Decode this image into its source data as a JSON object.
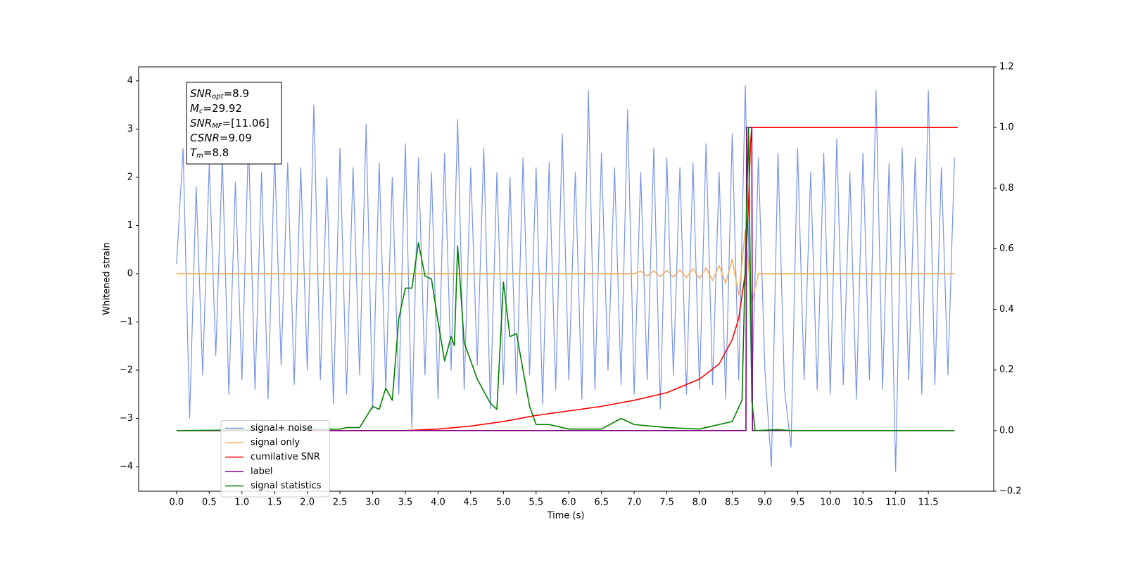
{
  "chart_data": {
    "type": "line",
    "xlabel": "Time (s)",
    "ylabel": "Whitened strain",
    "xlim": [
      -0.58,
      12.5
    ],
    "ylim": [
      -4.51,
      4.29
    ],
    "y2lim": [
      -0.2,
      1.2
    ],
    "xticks": [
      {
        "value": 0,
        "label": "0.0"
      },
      {
        "value": 0.5,
        "label": "0.5"
      },
      {
        "value": 1,
        "label": "1.0"
      },
      {
        "value": 1.5,
        "label": "1.5"
      },
      {
        "value": 2,
        "label": "2.0"
      },
      {
        "value": 2.5,
        "label": "2.5"
      },
      {
        "value": 3,
        "label": "3.0"
      },
      {
        "value": 3.5,
        "label": "3.5"
      },
      {
        "value": 4,
        "label": "4.0"
      },
      {
        "value": 4.5,
        "label": "4.5"
      },
      {
        "value": 5,
        "label": "5.0"
      },
      {
        "value": 5.5,
        "label": "5.5"
      },
      {
        "value": 6,
        "label": "6.0"
      },
      {
        "value": 6.5,
        "label": "6.5"
      },
      {
        "value": 7,
        "label": "7.0"
      },
      {
        "value": 7.5,
        "label": "7.5"
      },
      {
        "value": 8,
        "label": "8.0"
      },
      {
        "value": 8.5,
        "label": "8.5"
      },
      {
        "value": 9,
        "label": "9.0"
      },
      {
        "value": 9.5,
        "label": "9.5"
      },
      {
        "value": 10,
        "label": "10.0"
      },
      {
        "value": 10.5,
        "label": "10.5"
      },
      {
        "value": 11,
        "label": "11.0"
      },
      {
        "value": 11.5,
        "label": "11.5"
      }
    ],
    "yticks": [
      {
        "value": -4,
        "label": "−4"
      },
      {
        "value": -3,
        "label": "−3"
      },
      {
        "value": -2,
        "label": "−2"
      },
      {
        "value": -1,
        "label": "−1"
      },
      0,
      1,
      2,
      3,
      4
    ],
    "y2ticks": [
      {
        "value": -0.2,
        "label": "−0.2"
      },
      {
        "value": 0,
        "label": "0.0"
      },
      0.2,
      0.4,
      0.6,
      0.8,
      {
        "value": 1,
        "label": "1.0"
      },
      1.2
    ],
    "legend": "lower left",
    "annotations": [
      {
        "base": "SNR",
        "sub": "opt",
        "text": "=8.9"
      },
      {
        "base": "M",
        "sub": "c",
        "text": "=29.92"
      },
      {
        "base": "SNR",
        "sub": "MF",
        "text": "=[11.06]"
      },
      {
        "base": "CSNR",
        "sub": null,
        "text": "=9.09"
      },
      {
        "base": "T",
        "sub": "m",
        "text": "=8.8"
      }
    ],
    "x": [
      0,
      0.1,
      0.2,
      0.3,
      0.4,
      0.5,
      0.6,
      0.7,
      0.8,
      0.9,
      1,
      1.1,
      1.2,
      1.3,
      1.4,
      1.5,
      1.6,
      1.7,
      1.8,
      1.9,
      2,
      2.1,
      2.2,
      2.3,
      2.4,
      2.5,
      2.6,
      2.7,
      2.8,
      2.9,
      3,
      3.1,
      3.2,
      3.3,
      3.4,
      3.5,
      3.6,
      3.7,
      3.8,
      3.9,
      4,
      4.1,
      4.2,
      4.3,
      4.4,
      4.5,
      4.6,
      4.7,
      4.8,
      4.9,
      5,
      5.1,
      5.2,
      5.3,
      5.4,
      5.5,
      5.6,
      5.7,
      5.8,
      5.9,
      6,
      6.1,
      6.2,
      6.3,
      6.4,
      6.5,
      6.6,
      6.7,
      6.8,
      6.9,
      7,
      7.1,
      7.2,
      7.3,
      7.4,
      7.5,
      7.6,
      7.7,
      7.8,
      7.9,
      8,
      8.1,
      8.2,
      8.3,
      8.4,
      8.5,
      8.6,
      8.7,
      8.8,
      8.9,
      9,
      9.1,
      9.2,
      9.3,
      9.4,
      9.5,
      9.6,
      9.7,
      9.8,
      9.9,
      10,
      10.1,
      10.2,
      10.3,
      10.4,
      10.5,
      10.6,
      10.7,
      10.8,
      10.9,
      11,
      11.1,
      11.2,
      11.3,
      11.4,
      11.5,
      11.6,
      11.7,
      11.8,
      11.9
    ],
    "series": [
      {
        "name": "signal+ noise",
        "color": "#7893e6",
        "values": [
          0.2,
          2.6,
          -3.0,
          1.8,
          -2.1,
          2.3,
          -1.7,
          2.4,
          -2.5,
          1.9,
          -2.2,
          2.8,
          -2.4,
          2.1,
          -2.6,
          2.5,
          -1.9,
          2.3,
          -2.3,
          2.2,
          -2.0,
          3.5,
          -2.2,
          2.0,
          -2.7,
          2.6,
          -2.5,
          2.2,
          -2.1,
          3.1,
          -2.8,
          2.3,
          -2.4,
          2.0,
          -2.5,
          2.7,
          -3.2,
          2.4,
          -2.1,
          2.1,
          -2.6,
          2.5,
          -2.0,
          3.2,
          -2.4,
          2.2,
          -1.9,
          2.6,
          -2.8,
          2.1,
          -2.3,
          2.0,
          -2.5,
          2.4,
          -2.1,
          2.2,
          -2.7,
          2.3,
          -2.4,
          2.9,
          -2.2,
          2.1,
          -2.6,
          3.8,
          -2.4,
          2.5,
          -2.0,
          2.2,
          -2.3,
          3.4,
          -2.5,
          2.1,
          -2.2,
          2.6,
          -2.8,
          2.4,
          -2.1,
          2.2,
          -2.5,
          2.3,
          -2.4,
          2.7,
          -2.3,
          2.1,
          -2.6,
          2.9,
          -2.2,
          3.9,
          -2.5,
          2.4,
          -2.0,
          -4.0,
          2.5,
          -2.4,
          -3.6,
          2.6,
          -2.2,
          2.1,
          -2.4,
          2.5,
          -2.5,
          2.8,
          -2.3,
          2.1,
          -2.6,
          2.5,
          -2.2,
          3.8,
          -2.4,
          2.3,
          -4.1,
          2.6,
          -2.2,
          2.4,
          -2.5,
          3.8,
          -2.3,
          2.2,
          -2.1,
          2.4
        ]
      },
      {
        "name": "signal only",
        "color": "#f0b060",
        "values": [
          0,
          0,
          0,
          0,
          0,
          0,
          0,
          0,
          0,
          0,
          0,
          0,
          0,
          0,
          0,
          0,
          0,
          0,
          0,
          0,
          0,
          0,
          0,
          0,
          0,
          0,
          0,
          0,
          0,
          0,
          0,
          0,
          0,
          0,
          0,
          0,
          0,
          0,
          0,
          0,
          0,
          0,
          0,
          0,
          0,
          0,
          0,
          0,
          0,
          0,
          0,
          0,
          0,
          0,
          0,
          0,
          0,
          0,
          0,
          0,
          0,
          0,
          0,
          0,
          0,
          0,
          0,
          0,
          0,
          0,
          0,
          0.05,
          -0.05,
          0.06,
          -0.06,
          0.07,
          -0.07,
          0.08,
          -0.08,
          0.1,
          -0.1,
          0.12,
          -0.14,
          0.17,
          -0.2,
          0.3,
          -0.45,
          0.9,
          -0.6,
          0,
          0,
          0,
          0,
          0,
          0,
          0,
          0,
          0,
          0,
          0,
          0,
          0,
          0,
          0,
          0,
          0,
          0,
          0,
          0,
          0,
          0,
          0,
          0,
          0,
          0,
          0,
          0,
          0,
          0,
          0
        ]
      },
      {
        "name": "cumilative SNR",
        "color": "#ff0000",
        "axis": "y2",
        "x": [
          0,
          3.5,
          4,
          4.5,
          5,
          5.5,
          6,
          6.5,
          7,
          7.5,
          8,
          8.3,
          8.5,
          8.6,
          8.7,
          8.75,
          8.78,
          8.8,
          11.95
        ],
        "values": [
          0,
          0,
          0.005,
          0.015,
          0.03,
          0.05,
          0.065,
          0.08,
          0.1,
          0.125,
          0.17,
          0.22,
          0.3,
          0.37,
          0.52,
          0.75,
          0.95,
          1,
          1
        ]
      },
      {
        "name": "label",
        "color": "#800080",
        "axis": "y2",
        "x": [
          0,
          8.71,
          8.72,
          8.8,
          8.81,
          11.9
        ],
        "values": [
          0,
          0,
          1,
          1,
          0,
          0
        ]
      },
      {
        "name": "signal statistics",
        "color": "#008000",
        "axis": "y2",
        "x": [
          0,
          2.5,
          2.6,
          2.8,
          3.0,
          3.1,
          3.2,
          3.3,
          3.4,
          3.5,
          3.6,
          3.7,
          3.8,
          3.9,
          4.0,
          4.1,
          4.2,
          4.25,
          4.3,
          4.4,
          4.5,
          4.6,
          4.7,
          4.8,
          4.9,
          5.0,
          5.1,
          5.2,
          5.3,
          5.4,
          5.5,
          5.7,
          6.0,
          6.5,
          6.8,
          7.0,
          7.5,
          8.0,
          8.5,
          8.65,
          8.75,
          8.8,
          8.85,
          9.2,
          9.4,
          11.9
        ],
        "values": [
          0,
          0.005,
          0.01,
          0.01,
          0.08,
          0.07,
          0.14,
          0.1,
          0.37,
          0.47,
          0.47,
          0.62,
          0.51,
          0.5,
          0.36,
          0.23,
          0.31,
          0.28,
          0.61,
          0.29,
          0.23,
          0.17,
          0.13,
          0.09,
          0.07,
          0.49,
          0.31,
          0.32,
          0.2,
          0.08,
          0.02,
          0.02,
          0.005,
          0.005,
          0.04,
          0.02,
          0.01,
          0.005,
          0.03,
          0.1,
          1,
          0.1,
          0,
          0.003,
          0,
          0
        ]
      }
    ]
  }
}
